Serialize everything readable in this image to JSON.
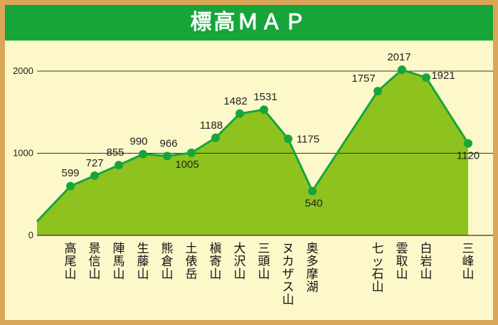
{
  "title": "標高ＭＡＰ",
  "colors": {
    "header": "#17a53a",
    "frame": "#d9a757",
    "background": "#fdf8c9",
    "area_fill": "#8ec21f",
    "line": "#17a53a",
    "marker": "#17a53a"
  },
  "chart_data": {
    "type": "area",
    "title": "標高ＭＡＰ",
    "xlabel": "",
    "ylabel": "",
    "ylim": [
      0,
      2000
    ],
    "yticks": [
      0,
      1000,
      2000
    ],
    "grid": true,
    "categories": [
      "高尾山",
      "景信山",
      "陣馬山",
      "生藤山",
      "熊倉山",
      "土俵岳",
      "槇寄山",
      "大沢山",
      "三頭山",
      "ヌカザス山",
      "奥多摩湖",
      "七ッ石山",
      "雲取山",
      "白岩山",
      "三峰山"
    ],
    "values": [
      599,
      727,
      855,
      990,
      966,
      1005,
      1188,
      1482,
      1531,
      1175,
      540,
      1757,
      2017,
      1921,
      1120
    ]
  }
}
